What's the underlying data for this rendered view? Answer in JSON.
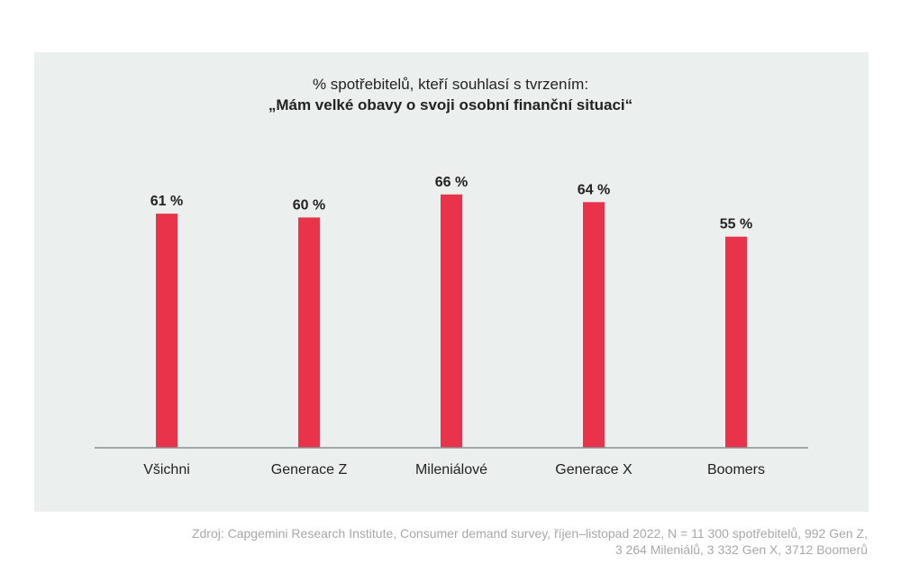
{
  "chart_data": {
    "type": "bar",
    "title": "% spotřebitelů, kteří souhlasí s tvrzením:",
    "subtitle": "„Mám velké obavy o svoji osobní finanční situaci“",
    "categories": [
      "Všichni",
      "Generace Z",
      "Mileniálové",
      "Generace X",
      "Boomers"
    ],
    "values": [
      61,
      60,
      66,
      64,
      55
    ],
    "value_labels": [
      "61 %",
      "60 %",
      "66 %",
      "64 %",
      "55 %"
    ],
    "ylim": [
      0,
      100
    ],
    "grid": false,
    "legend": "none",
    "bar_color": "#e8334a",
    "axis_color": "#8a8f94"
  },
  "source": {
    "line1": "Zdroj: Capgemini Research Institute, Consumer demand survey, říjen–listopad 2022, N = 11 300 spotřebitelů, 992 Gen Z,",
    "line2": "3 264 Mileniálů, 3 332 Gen X, 3712 Boomerů"
  }
}
